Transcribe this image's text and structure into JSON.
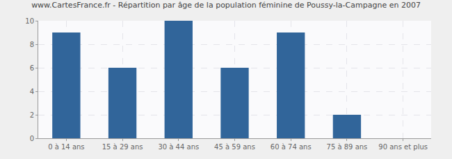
{
  "chart_data": {
    "type": "bar",
    "title": "www.CartesFrance.fr - Répartition par âge de la population féminine de Poussy-la-Campagne en 2007",
    "categories": [
      "0 à 14 ans",
      "15 à 29 ans",
      "30 à 44 ans",
      "45 à 59 ans",
      "60 à 74 ans",
      "75 à 89 ans",
      "90 ans et plus"
    ],
    "values": [
      9,
      6,
      10,
      6,
      9,
      2,
      0
    ],
    "color": "#31659a",
    "ylim": [
      0,
      10
    ],
    "yticks": [
      0,
      2,
      4,
      6,
      8,
      10
    ],
    "grid": true
  }
}
